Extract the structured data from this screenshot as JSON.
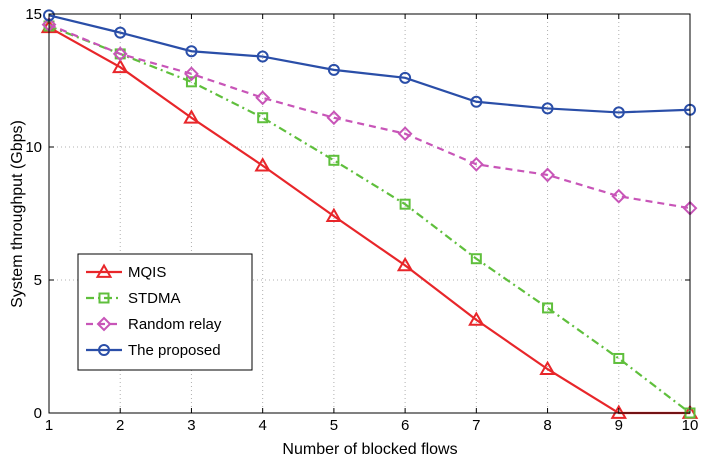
{
  "chart_data": {
    "type": "line",
    "title": "",
    "xlabel": "Number of blocked flows",
    "ylabel": "System throughput (Gbps)",
    "x": [
      1,
      2,
      3,
      4,
      5,
      6,
      7,
      8,
      9,
      10
    ],
    "xlim": [
      1,
      10
    ],
    "ylim": [
      0,
      15
    ],
    "xticks": [
      "1",
      "2",
      "3",
      "4",
      "5",
      "6",
      "7",
      "8",
      "9",
      "10"
    ],
    "yticks": [
      "0",
      "5",
      "10",
      "15"
    ],
    "grid": true,
    "legend_position": "bottom-left",
    "series": [
      {
        "name": "MQIS",
        "color": "#e8262a",
        "marker": "triangle",
        "line": "solid",
        "values": [
          14.5,
          13.0,
          11.1,
          9.3,
          7.4,
          5.55,
          3.5,
          1.65,
          0.0,
          0.0
        ]
      },
      {
        "name": "STDMA",
        "color": "#5fbf3c",
        "marker": "square",
        "line": "dashdot",
        "values": [
          14.55,
          13.5,
          12.45,
          11.1,
          9.5,
          7.85,
          5.8,
          3.95,
          2.05,
          0.0
        ]
      },
      {
        "name": "Random relay",
        "color": "#c855b8",
        "marker": "diamond",
        "line": "dashed",
        "values": [
          14.6,
          13.5,
          12.75,
          11.85,
          11.1,
          10.5,
          9.35,
          8.95,
          8.15,
          7.7
        ]
      },
      {
        "name": "The proposed",
        "color": "#2a4ea8",
        "marker": "circle",
        "line": "solid",
        "values": [
          14.95,
          14.3,
          13.6,
          13.4,
          12.9,
          12.6,
          11.7,
          11.45,
          11.3,
          11.4
        ]
      }
    ]
  }
}
